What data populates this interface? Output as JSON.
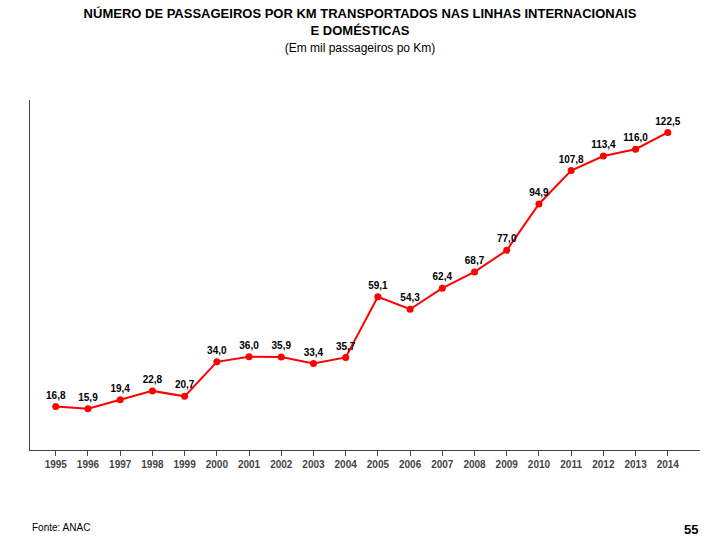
{
  "chart_data": {
    "type": "line",
    "title": [
      "NÚMERO DE PASSAGEIROS POR KM TRANSPORTADOS NAS LINHAS INTERNACIONAIS",
      "E DOMÉSTICAS"
    ],
    "subtitle": "(Em mil passageiros po Km)",
    "x": [
      1995,
      1996,
      1997,
      1998,
      1999,
      2000,
      2001,
      2002,
      2003,
      2004,
      2005,
      2006,
      2007,
      2008,
      2009,
      2010,
      2011,
      2012,
      2013,
      2014
    ],
    "values": [
      16.8,
      15.9,
      19.4,
      22.8,
      20.7,
      34.0,
      36.0,
      35.9,
      33.4,
      35.7,
      59.1,
      54.3,
      62.4,
      68.7,
      77.0,
      94.9,
      107.8,
      113.4,
      116.0,
      122.5
    ],
    "value_labels": [
      "16,8",
      "15,9",
      "19,4",
      "22,8",
      "20,7",
      "34,0",
      "36,0",
      "35,9",
      "33,4",
      "35,7",
      "59,1",
      "54,3",
      "62,4",
      "68,7",
      "77,0",
      "94,9",
      "107,8",
      "113,4",
      "116,0",
      "122,5"
    ],
    "data_labels": true,
    "color": "#ff0000",
    "marker": "circle",
    "xlim": [
      1994.2,
      2015.0
    ],
    "xticks": [
      1995,
      1996,
      1997,
      1998,
      1999,
      2000,
      2001,
      2002,
      2003,
      2004,
      2005,
      2006,
      2007,
      2008,
      2009,
      2010,
      2011,
      2012,
      2013,
      2014
    ],
    "ylim": [
      0,
      135
    ],
    "tick_labels": "x",
    "grid": false,
    "annotations": [
      "Fonte: ANAC",
      "55"
    ]
  }
}
